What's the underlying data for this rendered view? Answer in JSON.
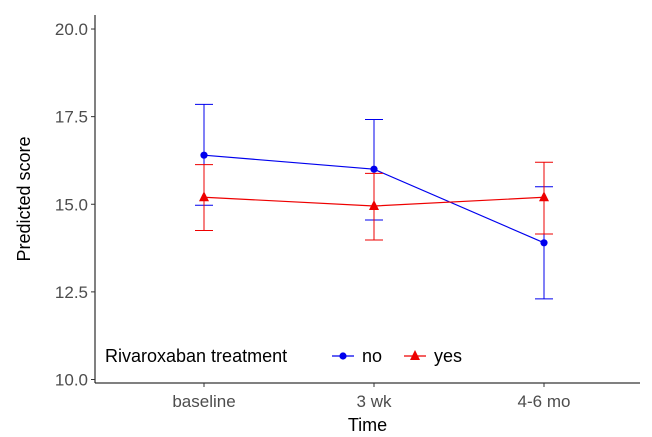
{
  "colors": {
    "no": "#0000ee",
    "yes": "#ee0000",
    "axis": "#000000",
    "tick_text": "#4d4d4d"
  },
  "chart_data": {
    "type": "line",
    "title": "",
    "xlabel": "Time",
    "ylabel": "Predicted score",
    "categories": [
      "baseline",
      "3 wk",
      "4-6 mo"
    ],
    "ylim": [
      9.9,
      20.4
    ],
    "yticks": [
      10.0,
      12.5,
      15.0,
      17.5,
      20.0
    ],
    "ytick_labels": [
      "10.0",
      "12.5",
      "15.0",
      "17.5",
      "20.0"
    ],
    "grid": false,
    "legend": {
      "title": "Rivaroxaban treatment",
      "position": "bottom-left",
      "labels": [
        "no",
        "yes"
      ]
    },
    "series": [
      {
        "name": "no",
        "marker": "circle",
        "values": [
          16.4,
          16.0,
          13.9
        ],
        "lower": [
          14.97,
          14.55,
          12.3
        ],
        "upper": [
          17.85,
          17.42,
          15.5
        ]
      },
      {
        "name": "yes",
        "marker": "triangle",
        "values": [
          15.2,
          14.95,
          15.2
        ],
        "lower": [
          14.25,
          13.98,
          14.15
        ],
        "upper": [
          16.13,
          15.88,
          16.2
        ]
      }
    ]
  }
}
